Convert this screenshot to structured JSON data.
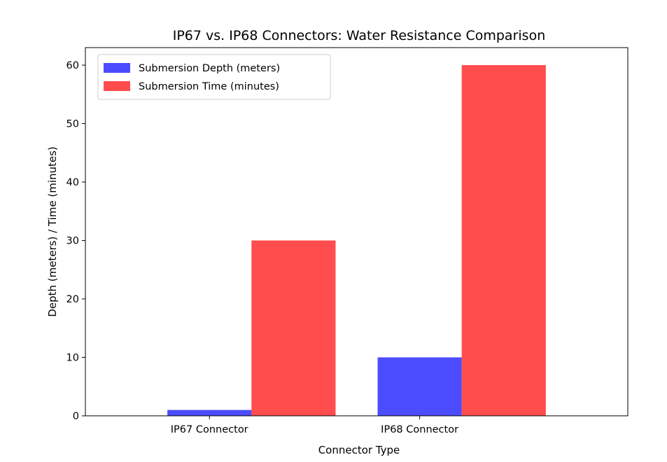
{
  "chart_data": {
    "type": "bar",
    "title": "IP67 vs. IP68 Connectors: Water Resistance Comparison",
    "xlabel": "Connector Type",
    "ylabel": "Depth (meters) / Time (minutes)",
    "categories": [
      "IP67 Connector",
      "IP68 Connector"
    ],
    "series": [
      {
        "name": "Submersion Depth (meters)",
        "values": [
          1,
          10
        ],
        "color": "#0000ff",
        "opacity": 0.7
      },
      {
        "name": "Submersion Time (minutes)",
        "values": [
          30,
          60
        ],
        "color": "#ff0000",
        "opacity": 0.7
      }
    ],
    "ylim": [
      0,
      63
    ],
    "yticks": [
      0,
      10,
      20,
      30,
      40,
      50,
      60
    ],
    "grid": false,
    "legend_position": "top-left"
  }
}
